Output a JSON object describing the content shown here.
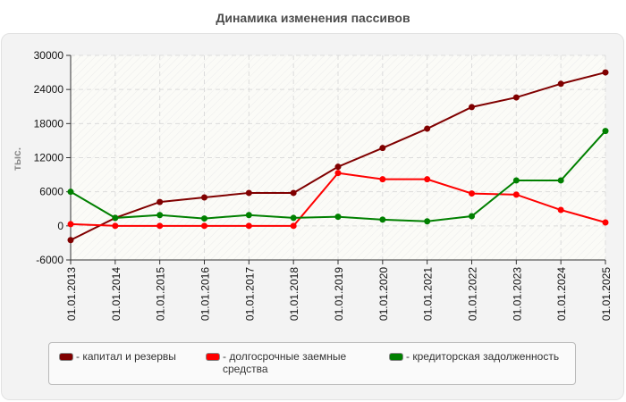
{
  "header": {
    "title": "Динамика изменения пассивов"
  },
  "chart_data": {
    "type": "line",
    "title": "Динамика изменения пассивов",
    "xlabel": "",
    "ylabel": "тыс.",
    "ylim": [
      -6000,
      30000
    ],
    "yticks": [
      -6000,
      0,
      6000,
      12000,
      18000,
      24000,
      30000
    ],
    "grid": true,
    "legend_position": "bottom",
    "categories": [
      "01.01.2013",
      "01.01.2014",
      "01.01.2015",
      "01.01.2016",
      "01.01.2017",
      "01.01.2018",
      "01.01.2019",
      "01.01.2020",
      "01.01.2021",
      "01.01.2022",
      "01.01.2023",
      "01.01.2024",
      "01.01.2025"
    ],
    "series": [
      {
        "name": "капитал и резервы",
        "color": "#800000",
        "values": [
          -2500,
          1400,
          4200,
          5000,
          5800,
          5800,
          10400,
          13700,
          17100,
          20900,
          22600,
          25000,
          27000
        ]
      },
      {
        "name": "долгосрочные заемные средства",
        "color": "#ff0000",
        "values": [
          300,
          0,
          0,
          0,
          0,
          0,
          9300,
          8200,
          8200,
          5700,
          5500,
          2800,
          600
        ]
      },
      {
        "name": "кредиторская задолженность",
        "color": "#008000",
        "values": [
          6000,
          1400,
          1900,
          1300,
          1900,
          1400,
          1600,
          1100,
          800,
          1700,
          8000,
          8000,
          16700
        ]
      }
    ]
  },
  "legend": {
    "items": [
      {
        "label": "- капитал и резервы",
        "color": "#800000"
      },
      {
        "label": "- долгосрочные заемные средства",
        "color": "#ff0000"
      },
      {
        "label": "- кредиторская задолженность",
        "color": "#008000"
      }
    ]
  }
}
